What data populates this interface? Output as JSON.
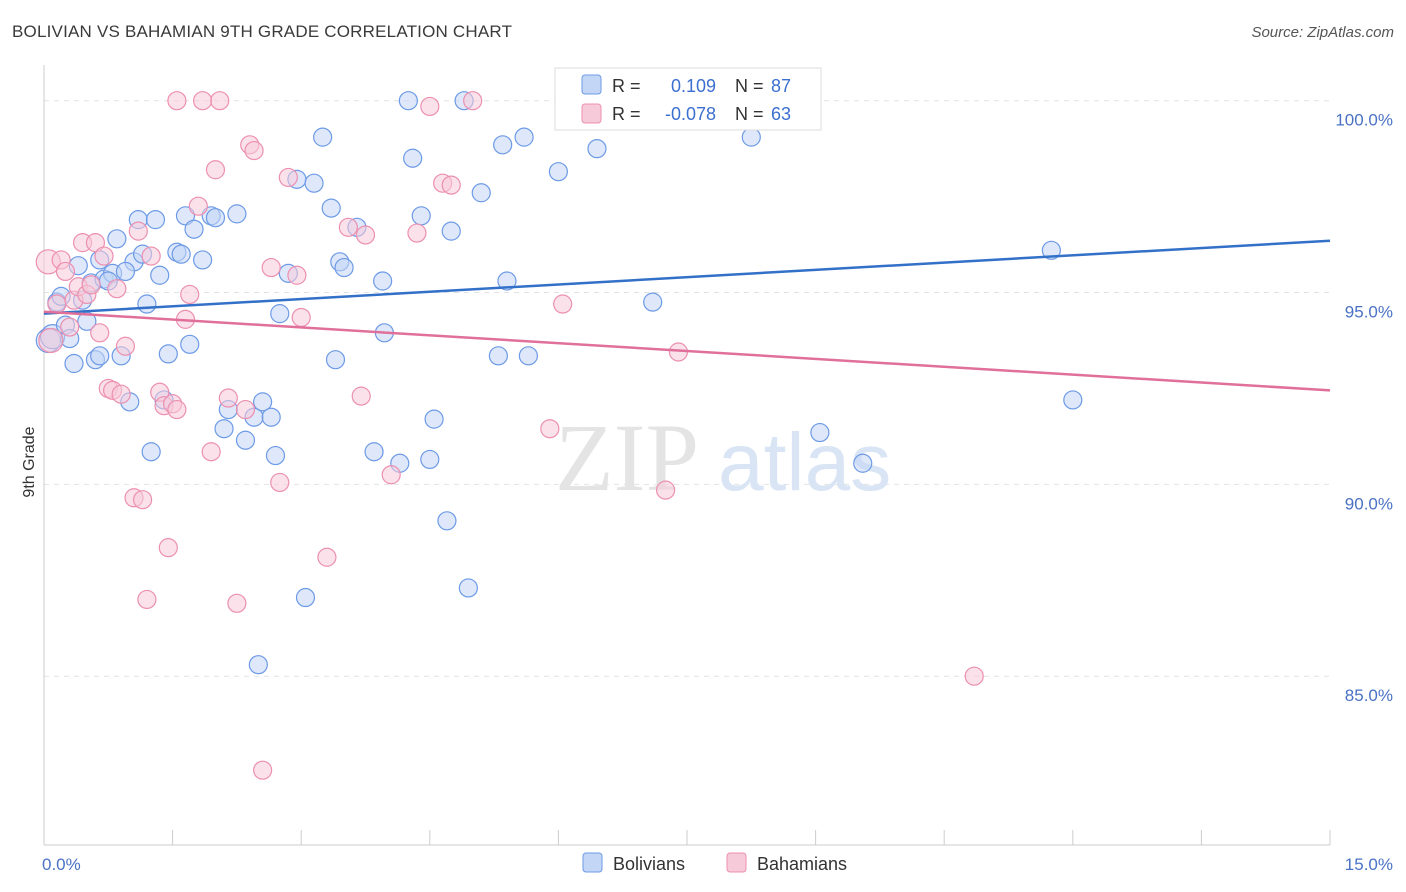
{
  "header": {
    "title": "BOLIVIAN VS BAHAMIAN 9TH GRADE CORRELATION CHART",
    "source": "Source: ZipAtlas.com"
  },
  "watermark": {
    "zip": "ZIP",
    "atlas": "atlas"
  },
  "colors": {
    "bolivians": "#6d9ae6",
    "bolivians_fill": "#c3d6f5",
    "bahamians": "#ec8fb0",
    "bahamians_fill": "#f7cad9",
    "blue_line": "#3370c8",
    "pink_line": "#e0709a",
    "axis_label": "#4a72c4"
  },
  "legend": {
    "r_label": "R =",
    "n_label": "N =",
    "bolivians": {
      "r": "0.109",
      "n": "87"
    },
    "bahamians": {
      "r": "-0.078",
      "n": "63"
    }
  },
  "chart_data": {
    "type": "scatter",
    "title": "BOLIVIAN VS BAHAMIAN 9TH GRADE CORRELATION CHART",
    "xlabel": "",
    "ylabel": "9th Grade",
    "xlim": [
      0,
      15
    ],
    "ylim": [
      80.6,
      100.8
    ],
    "x_tick_labels": [
      "0.0%",
      "15.0%"
    ],
    "y_ticks": [
      85,
      90,
      95,
      100
    ],
    "y_tick_labels": [
      "85.0%",
      "90.0%",
      "95.0%",
      "100.0%"
    ],
    "grid": true,
    "legend_position": "top-center",
    "series": [
      {
        "name": "Bolivians",
        "color": "#6d9ae6",
        "trend": {
          "x": [
            0,
            15
          ],
          "y": [
            94.45,
            96.35
          ]
        },
        "points": [
          [
            0.05,
            93.75
          ],
          [
            0.1,
            93.85
          ],
          [
            0.15,
            94.75
          ],
          [
            0.2,
            94.9
          ],
          [
            0.25,
            94.15
          ],
          [
            0.35,
            93.15
          ],
          [
            0.4,
            95.7
          ],
          [
            0.45,
            94.8
          ],
          [
            0.5,
            94.25
          ],
          [
            0.55,
            95.25
          ],
          [
            0.6,
            93.25
          ],
          [
            0.65,
            95.85
          ],
          [
            0.7,
            95.35
          ],
          [
            0.8,
            95.5
          ],
          [
            0.85,
            96.4
          ],
          [
            0.9,
            93.35
          ],
          [
            1.0,
            92.15
          ],
          [
            1.05,
            95.8
          ],
          [
            1.1,
            96.9
          ],
          [
            1.15,
            96.0
          ],
          [
            1.2,
            94.7
          ],
          [
            1.3,
            96.9
          ],
          [
            1.35,
            95.45
          ],
          [
            1.4,
            92.2
          ],
          [
            1.45,
            93.4
          ],
          [
            1.55,
            96.05
          ],
          [
            1.65,
            97.0
          ],
          [
            1.7,
            93.65
          ],
          [
            1.75,
            96.65
          ],
          [
            1.85,
            95.85
          ],
          [
            1.95,
            97.0
          ],
          [
            2.0,
            96.95
          ],
          [
            2.1,
            91.45
          ],
          [
            2.25,
            97.05
          ],
          [
            2.35,
            91.15
          ],
          [
            2.45,
            91.75
          ],
          [
            2.55,
            92.15
          ],
          [
            2.65,
            91.75
          ],
          [
            2.75,
            94.45
          ],
          [
            2.85,
            95.5
          ],
          [
            2.95,
            97.95
          ],
          [
            3.05,
            87.05
          ],
          [
            3.15,
            97.85
          ],
          [
            3.25,
            99.05
          ],
          [
            3.35,
            97.2
          ],
          [
            3.4,
            93.25
          ],
          [
            3.45,
            95.8
          ],
          [
            3.5,
            95.65
          ],
          [
            3.65,
            96.7
          ],
          [
            3.85,
            90.85
          ],
          [
            3.95,
            95.3
          ],
          [
            3.97,
            93.95
          ],
          [
            4.15,
            90.55
          ],
          [
            4.25,
            100.0
          ],
          [
            4.3,
            98.5
          ],
          [
            4.4,
            97.0
          ],
          [
            4.5,
            90.65
          ],
          [
            4.55,
            91.7
          ],
          [
            4.7,
            89.05
          ],
          [
            4.75,
            96.6
          ],
          [
            4.9,
            100.0
          ],
          [
            4.95,
            87.3
          ],
          [
            5.1,
            97.6
          ],
          [
            5.3,
            93.35
          ],
          [
            5.35,
            98.85
          ],
          [
            5.4,
            95.3
          ],
          [
            5.65,
            93.35
          ],
          [
            5.6,
            99.05
          ],
          [
            6.0,
            98.15
          ],
          [
            6.45,
            98.75
          ],
          [
            6.55,
            100.0
          ],
          [
            7.1,
            94.75
          ],
          [
            7.9,
            100.0
          ],
          [
            8.25,
            99.05
          ],
          [
            9.05,
            91.35
          ],
          [
            9.55,
            90.55
          ],
          [
            11.75,
            96.1
          ],
          [
            12.0,
            92.2
          ],
          [
            1.25,
            90.85
          ],
          [
            2.15,
            91.95
          ],
          [
            2.5,
            85.3
          ],
          [
            2.7,
            90.75
          ],
          [
            0.3,
            93.8
          ],
          [
            0.75,
            95.3
          ],
          [
            1.6,
            96.0
          ],
          [
            0.95,
            95.55
          ],
          [
            0.65,
            93.35
          ]
        ]
      },
      {
        "name": "Bahamians",
        "color": "#ec8fb0",
        "trend": {
          "x": [
            0,
            15
          ],
          "y": [
            94.5,
            92.45
          ]
        },
        "points": [
          [
            0.05,
            95.8
          ],
          [
            0.08,
            93.75
          ],
          [
            0.15,
            94.7
          ],
          [
            0.2,
            95.85
          ],
          [
            0.25,
            95.55
          ],
          [
            0.3,
            94.1
          ],
          [
            0.35,
            94.8
          ],
          [
            0.4,
            95.15
          ],
          [
            0.45,
            96.3
          ],
          [
            0.5,
            94.95
          ],
          [
            0.55,
            95.2
          ],
          [
            0.6,
            96.3
          ],
          [
            0.65,
            93.95
          ],
          [
            0.7,
            95.95
          ],
          [
            0.75,
            92.5
          ],
          [
            0.8,
            92.45
          ],
          [
            0.85,
            95.1
          ],
          [
            0.9,
            92.35
          ],
          [
            0.95,
            93.6
          ],
          [
            1.05,
            89.65
          ],
          [
            1.1,
            96.6
          ],
          [
            1.15,
            89.6
          ],
          [
            1.2,
            87.0
          ],
          [
            1.25,
            95.95
          ],
          [
            1.35,
            92.4
          ],
          [
            1.4,
            92.05
          ],
          [
            1.45,
            88.35
          ],
          [
            1.5,
            92.1
          ],
          [
            1.55,
            91.95
          ],
          [
            1.65,
            94.3
          ],
          [
            1.7,
            94.95
          ],
          [
            1.8,
            97.25
          ],
          [
            1.85,
            100.0
          ],
          [
            1.95,
            90.85
          ],
          [
            2.0,
            98.2
          ],
          [
            2.05,
            100.0
          ],
          [
            2.15,
            92.25
          ],
          [
            2.25,
            86.9
          ],
          [
            2.35,
            91.95
          ],
          [
            2.4,
            98.85
          ],
          [
            2.45,
            98.7
          ],
          [
            2.55,
            82.55
          ],
          [
            2.65,
            95.65
          ],
          [
            2.75,
            90.05
          ],
          [
            2.85,
            98.0
          ],
          [
            2.95,
            95.45
          ],
          [
            3.0,
            94.35
          ],
          [
            3.3,
            88.1
          ],
          [
            3.55,
            96.7
          ],
          [
            3.7,
            92.3
          ],
          [
            3.75,
            96.5
          ],
          [
            4.05,
            90.25
          ],
          [
            4.35,
            96.55
          ],
          [
            4.5,
            99.85
          ],
          [
            4.65,
            97.85
          ],
          [
            4.75,
            97.8
          ],
          [
            5.0,
            100.0
          ],
          [
            5.9,
            91.45
          ],
          [
            6.05,
            94.7
          ],
          [
            7.25,
            89.85
          ],
          [
            7.4,
            93.45
          ],
          [
            10.85,
            85.0
          ],
          [
            1.55,
            100.0
          ]
        ]
      }
    ]
  },
  "bottom_legend": {
    "bolivians": "Bolivians",
    "bahamians": "Bahamians"
  }
}
